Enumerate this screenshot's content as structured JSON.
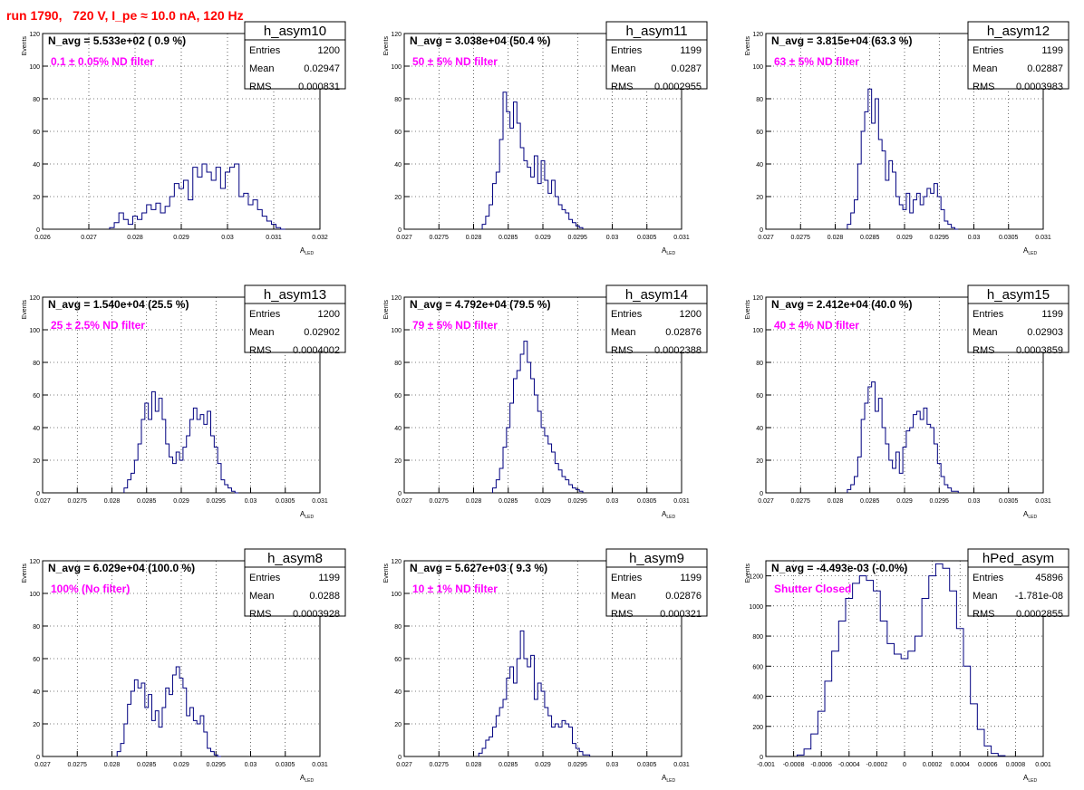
{
  "title": "run 1790,   720 V, I_pe ≈ 10.0 nA, 120 Hz",
  "ylabel": "Events",
  "xlabel_main": "A",
  "xlabel_sub": "LED",
  "stat_labels": {
    "entries": "Entries",
    "mean": "Mean",
    "rms": "RMS"
  },
  "colors": {
    "hist": "#000080",
    "annotation": "#ff00ff",
    "title": "#ff0000"
  },
  "chart_data": [
    {
      "type": "bar",
      "hist_name": "h_asym10",
      "navg": "N_avg = 5.533e+02 ( 0.9 %)",
      "filter": "0.1 ± 0.05% ND filter",
      "entries": "1200",
      "mean": "0.02947",
      "rms": "0.000831",
      "xlim": [
        0.026,
        0.032
      ],
      "ylim": [
        0,
        120
      ],
      "xticks": [
        "0.026",
        "0.027",
        "0.028",
        "0.029",
        "0.03",
        "0.031",
        "0.032"
      ],
      "yticks": [
        "0",
        "20",
        "40",
        "60",
        "80",
        "100",
        "120"
      ],
      "x": [
        0.0275,
        0.0276,
        0.0277,
        0.0278,
        0.0279,
        0.028,
        0.0281,
        0.0282,
        0.0283,
        0.0284,
        0.0285,
        0.0286,
        0.0287,
        0.0288,
        0.0289,
        0.029,
        0.0291,
        0.0292,
        0.0293,
        0.0294,
        0.0295,
        0.0296,
        0.0297,
        0.0298,
        0.0299,
        0.03,
        0.0301,
        0.0302,
        0.0303,
        0.0304,
        0.0305,
        0.0306,
        0.0307,
        0.0308,
        0.0309,
        0.031,
        0.0311,
        0.0312
      ],
      "y": [
        1,
        4,
        10,
        6,
        3,
        8,
        6,
        10,
        15,
        12,
        16,
        10,
        14,
        20,
        28,
        25,
        30,
        18,
        38,
        32,
        40,
        35,
        30,
        38,
        25,
        35,
        38,
        40,
        20,
        22,
        15,
        18,
        12,
        8,
        5,
        3,
        1,
        0
      ]
    },
    {
      "type": "bar",
      "hist_name": "h_asym11",
      "navg": "N_avg = 3.038e+04 (50.4 %)",
      "filter": "50 ± 5% ND filter",
      "entries": "1199",
      "mean": "0.0287",
      "rms": "0.0002955",
      "xlim": [
        0.027,
        0.031
      ],
      "ylim": [
        0,
        120
      ],
      "xticks": [
        "0.027",
        "0.0275",
        "0.028",
        "0.0285",
        "0.029",
        "0.0295",
        "0.03",
        "0.0305",
        "0.031"
      ],
      "yticks": [
        "0",
        "20",
        "40",
        "60",
        "80",
        "100",
        "120"
      ],
      "x": [
        0.02815,
        0.0282,
        0.02825,
        0.0283,
        0.02835,
        0.0284,
        0.02845,
        0.0285,
        0.02855,
        0.0286,
        0.02865,
        0.0287,
        0.02875,
        0.0288,
        0.02885,
        0.0289,
        0.02895,
        0.029,
        0.02905,
        0.0291,
        0.02915,
        0.0292,
        0.02925,
        0.0293,
        0.02935,
        0.0294,
        0.02945,
        0.0295,
        0.02955
      ],
      "y": [
        3,
        8,
        15,
        28,
        35,
        55,
        84,
        72,
        62,
        78,
        65,
        50,
        42,
        38,
        32,
        45,
        28,
        42,
        30,
        22,
        30,
        20,
        15,
        12,
        10,
        6,
        4,
        2,
        1
      ]
    },
    {
      "type": "bar",
      "hist_name": "h_asym12",
      "navg": "N_avg = 3.815e+04 (63.3 %)",
      "filter": "63 ± 5% ND filter",
      "entries": "1199",
      "mean": "0.02887",
      "rms": "0.0003983",
      "xlim": [
        0.027,
        0.031
      ],
      "ylim": [
        0,
        120
      ],
      "xticks": [
        "0.027",
        "0.0275",
        "0.028",
        "0.0285",
        "0.029",
        "0.0295",
        "0.03",
        "0.0305",
        "0.031"
      ],
      "yticks": [
        "0",
        "20",
        "40",
        "60",
        "80",
        "100",
        "120"
      ],
      "x": [
        0.0282,
        0.02825,
        0.0283,
        0.02835,
        0.0284,
        0.02845,
        0.0285,
        0.02855,
        0.0286,
        0.02865,
        0.0287,
        0.02875,
        0.0288,
        0.02885,
        0.0289,
        0.02895,
        0.029,
        0.02905,
        0.0291,
        0.02915,
        0.0292,
        0.02925,
        0.0293,
        0.02935,
        0.0294,
        0.02945,
        0.0295,
        0.02955,
        0.0296,
        0.02965,
        0.0297,
        0.02975
      ],
      "y": [
        3,
        10,
        18,
        40,
        60,
        72,
        86,
        65,
        80,
        55,
        48,
        30,
        42,
        35,
        20,
        15,
        12,
        22,
        10,
        18,
        22,
        15,
        20,
        25,
        22,
        28,
        20,
        12,
        5,
        3,
        1,
        0
      ]
    },
    {
      "type": "bar",
      "hist_name": "h_asym13",
      "navg": "N_avg = 1.540e+04 (25.5 %)",
      "filter": "25 ± 2.5% ND filter",
      "entries": "1200",
      "mean": "0.02902",
      "rms": "0.0004002",
      "xlim": [
        0.027,
        0.031
      ],
      "ylim": [
        0,
        120
      ],
      "xticks": [
        "0.027",
        "0.0275",
        "0.028",
        "0.0285",
        "0.029",
        "0.0295",
        "0.03",
        "0.0305",
        "0.031"
      ],
      "yticks": [
        "0",
        "20",
        "40",
        "60",
        "80",
        "100",
        "120"
      ],
      "x": [
        0.0282,
        0.02825,
        0.0283,
        0.02835,
        0.0284,
        0.02845,
        0.0285,
        0.02855,
        0.0286,
        0.02865,
        0.0287,
        0.02875,
        0.0288,
        0.02885,
        0.0289,
        0.02895,
        0.029,
        0.02905,
        0.0291,
        0.02915,
        0.0292,
        0.02925,
        0.0293,
        0.02935,
        0.0294,
        0.02945,
        0.0295,
        0.02955,
        0.0296,
        0.02965,
        0.0297,
        0.02975,
        0.0298
      ],
      "y": [
        3,
        8,
        12,
        20,
        30,
        45,
        55,
        45,
        62,
        50,
        58,
        45,
        30,
        22,
        18,
        25,
        20,
        28,
        35,
        45,
        52,
        45,
        48,
        42,
        50,
        35,
        28,
        18,
        8,
        5,
        3,
        1,
        0
      ]
    },
    {
      "type": "bar",
      "hist_name": "h_asym14",
      "navg": "N_avg = 4.792e+04 (79.5 %)",
      "filter": "79 ± 5% ND filter",
      "entries": "1200",
      "mean": "0.02876",
      "rms": "0.0002388",
      "xlim": [
        0.027,
        0.031
      ],
      "ylim": [
        0,
        120
      ],
      "xticks": [
        "0.027",
        "0.0275",
        "0.028",
        "0.0285",
        "0.029",
        "0.0295",
        "0.03",
        "0.0305",
        "0.031"
      ],
      "yticks": [
        "0",
        "20",
        "40",
        "60",
        "80",
        "100",
        "120"
      ],
      "x": [
        0.0283,
        0.02835,
        0.0284,
        0.02845,
        0.0285,
        0.02855,
        0.0286,
        0.02865,
        0.0287,
        0.02875,
        0.0288,
        0.02885,
        0.0289,
        0.02895,
        0.029,
        0.02905,
        0.0291,
        0.02915,
        0.0292,
        0.02925,
        0.0293,
        0.02935,
        0.0294,
        0.02945,
        0.0295,
        0.02955
      ],
      "y": [
        3,
        8,
        15,
        28,
        40,
        55,
        70,
        75,
        85,
        93,
        80,
        70,
        60,
        50,
        40,
        35,
        30,
        25,
        18,
        14,
        10,
        8,
        5,
        3,
        2,
        1
      ]
    },
    {
      "type": "bar",
      "hist_name": "h_asym15",
      "navg": "N_avg = 2.412e+04 (40.0 %)",
      "filter": "40 ± 4% ND filter",
      "entries": "1199",
      "mean": "0.02903",
      "rms": "0.0003859",
      "xlim": [
        0.027,
        0.031
      ],
      "ylim": [
        0,
        120
      ],
      "xticks": [
        "0.027",
        "0.0275",
        "0.028",
        "0.0285",
        "0.029",
        "0.0295",
        "0.03",
        "0.0305",
        "0.031"
      ],
      "yticks": [
        "0",
        "20",
        "40",
        "60",
        "80",
        "100",
        "120"
      ],
      "x": [
        0.0282,
        0.02825,
        0.0283,
        0.02835,
        0.0284,
        0.02845,
        0.0285,
        0.02855,
        0.0286,
        0.02865,
        0.0287,
        0.02875,
        0.0288,
        0.02885,
        0.0289,
        0.02895,
        0.029,
        0.02905,
        0.0291,
        0.02915,
        0.0292,
        0.02925,
        0.0293,
        0.02935,
        0.0294,
        0.02945,
        0.0295,
        0.02955,
        0.0296,
        0.02965,
        0.0297,
        0.02975
      ],
      "y": [
        2,
        5,
        10,
        22,
        45,
        55,
        65,
        68,
        50,
        58,
        40,
        30,
        20,
        15,
        25,
        12,
        28,
        38,
        40,
        48,
        50,
        45,
        52,
        42,
        40,
        30,
        18,
        10,
        5,
        3,
        1,
        1
      ]
    },
    {
      "type": "bar",
      "hist_name": "h_asym8",
      "navg": "N_avg = 6.029e+04 (100.0 %)",
      "filter": "100% (No filter)",
      "entries": "1199",
      "mean": "0.0288",
      "rms": "0.0003928",
      "xlim": [
        0.027,
        0.031
      ],
      "ylim": [
        0,
        120
      ],
      "xticks": [
        "0.027",
        "0.0275",
        "0.028",
        "0.0285",
        "0.029",
        "0.0295",
        "0.03",
        "0.0305",
        "0.031"
      ],
      "yticks": [
        "0",
        "20",
        "40",
        "60",
        "80",
        "100",
        "120"
      ],
      "x": [
        0.0281,
        0.02815,
        0.0282,
        0.02825,
        0.0283,
        0.02835,
        0.0284,
        0.02845,
        0.0285,
        0.02855,
        0.0286,
        0.02865,
        0.0287,
        0.02875,
        0.0288,
        0.02885,
        0.0289,
        0.02895,
        0.029,
        0.02905,
        0.0291,
        0.02915,
        0.0292,
        0.02925,
        0.0293,
        0.02935,
        0.0294,
        0.02945,
        0.0295,
        0.02955
      ],
      "y": [
        3,
        8,
        20,
        32,
        40,
        47,
        42,
        45,
        30,
        38,
        22,
        28,
        18,
        30,
        42,
        38,
        50,
        55,
        48,
        42,
        25,
        30,
        22,
        20,
        25,
        15,
        5,
        3,
        1,
        0
      ]
    },
    {
      "type": "bar",
      "hist_name": "h_asym9",
      "navg": "N_avg = 5.627e+03 ( 9.3 %)",
      "filter": "10 ± 1% ND filter",
      "entries": "1199",
      "mean": "0.02876",
      "rms": "0.000321",
      "xlim": [
        0.027,
        0.031
      ],
      "ylim": [
        0,
        120
      ],
      "xticks": [
        "0.027",
        "0.0275",
        "0.028",
        "0.0285",
        "0.029",
        "0.0295",
        "0.03",
        "0.0305",
        "0.031"
      ],
      "yticks": [
        "0",
        "20",
        "40",
        "60",
        "80",
        "100",
        "120"
      ],
      "x": [
        0.0281,
        0.02815,
        0.0282,
        0.02825,
        0.0283,
        0.02835,
        0.0284,
        0.02845,
        0.0285,
        0.02855,
        0.0286,
        0.02865,
        0.0287,
        0.02875,
        0.0288,
        0.02885,
        0.0289,
        0.02895,
        0.029,
        0.02905,
        0.0291,
        0.02915,
        0.0292,
        0.02925,
        0.0293,
        0.02935,
        0.0294,
        0.02945,
        0.0295,
        0.02955,
        0.0296,
        0.02965
      ],
      "y": [
        2,
        5,
        10,
        12,
        18,
        25,
        30,
        35,
        48,
        55,
        45,
        60,
        77,
        60,
        55,
        62,
        35,
        45,
        40,
        30,
        25,
        18,
        20,
        18,
        22,
        20,
        18,
        8,
        5,
        3,
        1,
        1
      ]
    },
    {
      "type": "bar",
      "hist_name": "hPed_asym",
      "navg": "N_avg = -4.493e-03 (-0.0%)",
      "filter": "Shutter Closed",
      "entries": "45896",
      "mean": "-1.781e-08",
      "rms": "0.0002855",
      "xlim": [
        -0.001,
        0.001
      ],
      "ylim": [
        0,
        1300
      ],
      "xticks": [
        "-0.001",
        "-0.0008",
        "-0.0006",
        "-0.0004",
        "-0.0002",
        "0",
        "0.0002",
        "0.0004",
        "0.0006",
        "0.0008",
        "0.001"
      ],
      "yticks": [
        "0",
        "200",
        "400",
        "600",
        "800",
        "1000",
        "1200"
      ],
      "x": [
        -0.00075,
        -0.0007,
        -0.00065,
        -0.0006,
        -0.00055,
        -0.0005,
        -0.00045,
        -0.0004,
        -0.00035,
        -0.0003,
        -0.00025,
        -0.0002,
        -0.00015,
        -0.0001,
        -5e-05,
        0,
        5e-05,
        0.0001,
        0.00015,
        0.0002,
        0.00025,
        0.0003,
        0.00035,
        0.0004,
        0.00045,
        0.0005,
        0.00055,
        0.0006,
        0.00065,
        0.0007
      ],
      "y": [
        10,
        50,
        150,
        300,
        500,
        700,
        900,
        1050,
        1150,
        1200,
        1170,
        1100,
        900,
        750,
        680,
        650,
        700,
        800,
        1050,
        1200,
        1280,
        1250,
        1100,
        850,
        600,
        350,
        180,
        70,
        20,
        5
      ]
    }
  ]
}
